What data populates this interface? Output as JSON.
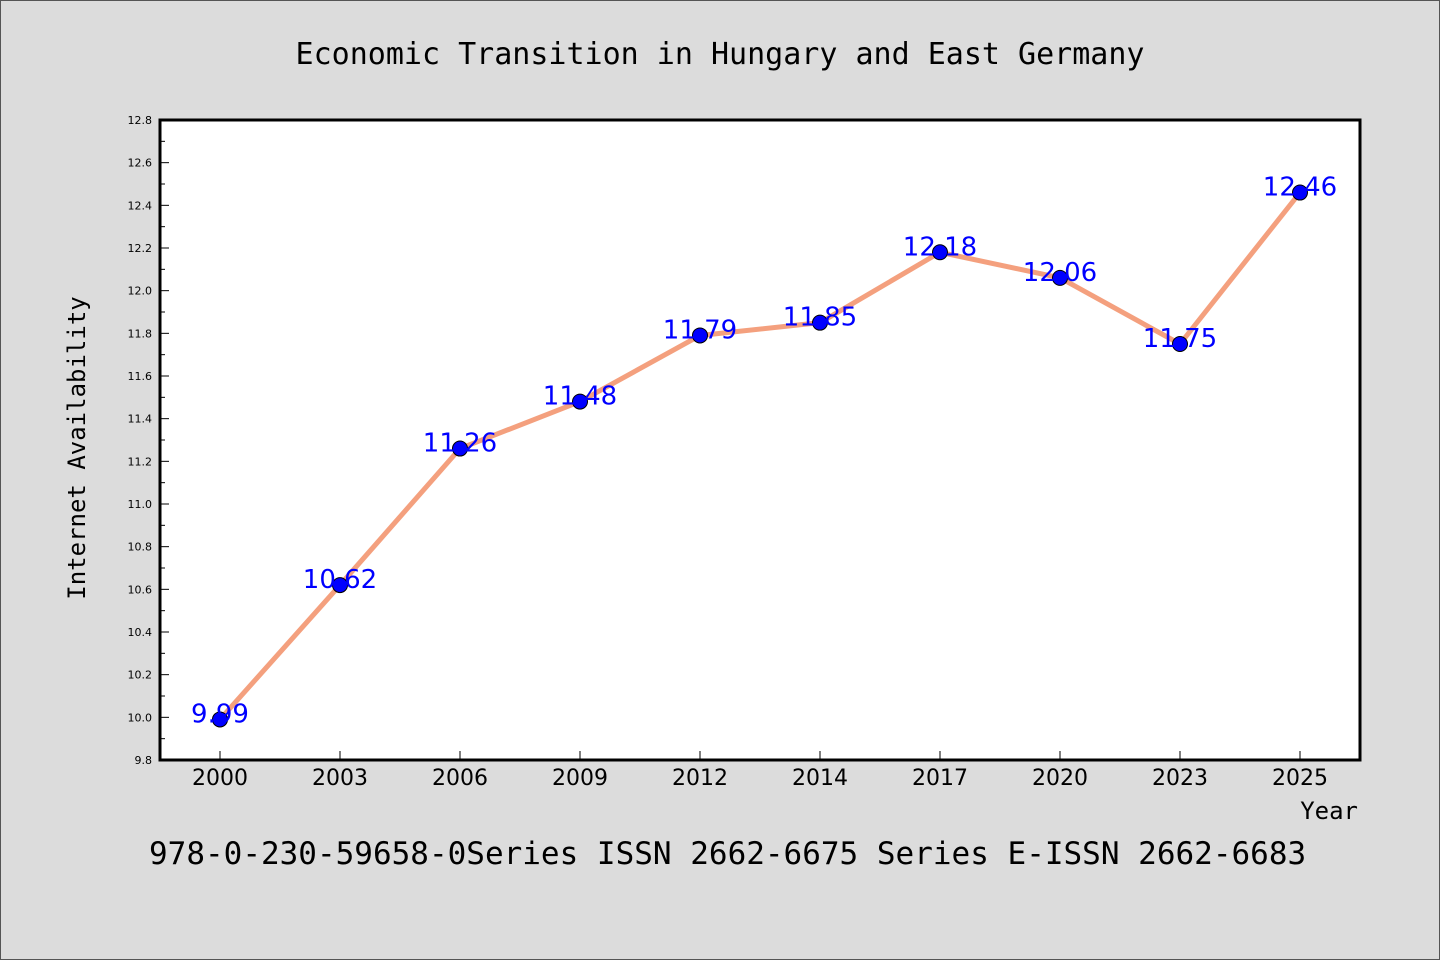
{
  "chart_data": {
    "type": "line",
    "title": "Economic Transition in Hungary and East Germany",
    "xlabel": "Year",
    "ylabel": "Internet Availability",
    "categories": [
      "2000",
      "2003",
      "2006",
      "2009",
      "2012",
      "2014",
      "2017",
      "2020",
      "2023",
      "2025"
    ],
    "values": [
      9.99,
      10.62,
      11.26,
      11.48,
      11.79,
      11.85,
      12.18,
      12.06,
      11.75,
      12.46
    ],
    "data_labels": [
      "9.99",
      "10.62",
      "11.26",
      "11.48",
      "11.79",
      "11.85",
      "12.18",
      "12.06",
      "11.75",
      "12.46"
    ],
    "ylim": [
      9.8,
      12.8
    ],
    "yticks": [
      "9.8",
      "10.0",
      "10.2",
      "10.4",
      "10.6",
      "10.8",
      "11.0",
      "11.2",
      "11.4",
      "11.6",
      "11.8",
      "12.0",
      "12.2",
      "12.4",
      "12.6",
      "12.8"
    ],
    "grid": false,
    "legend": "none",
    "colors": {
      "line": "#f4a07e",
      "marker": "#0000ff",
      "data_label": "#0000ff",
      "background": "#dcdcdc",
      "plot_background": "#ffffff"
    }
  },
  "footer": {
    "text": "978-0-230-59658-0Series ISSN 2662-6675 Series E-ISSN 2662-6683"
  }
}
